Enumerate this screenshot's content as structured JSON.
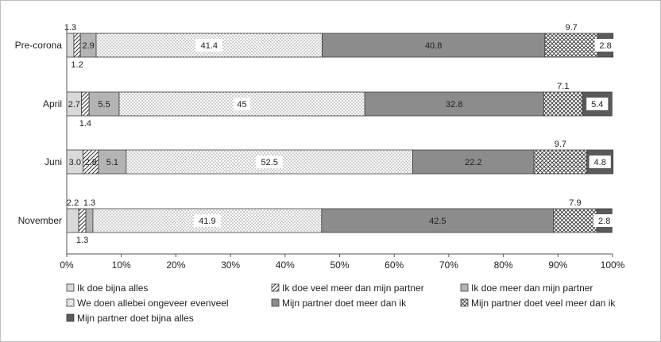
{
  "chart_data": {
    "type": "bar",
    "orientation": "horizontal",
    "stacked": "percent",
    "title": "",
    "xlabel": "",
    "ylabel": "",
    "xlim": [
      0,
      100
    ],
    "x_ticks": [
      "0%",
      "10%",
      "20%",
      "30%",
      "40%",
      "50%",
      "60%",
      "70%",
      "80%",
      "90%",
      "100%"
    ],
    "grid": false,
    "legend_position": "bottom",
    "categories": [
      "Pre-corona",
      "April",
      "Juni",
      "November"
    ],
    "series": [
      {
        "name": "Ik doe bijna alles",
        "values": [
          1.3,
          2.7,
          3.0,
          2.2
        ],
        "labels": [
          "1.3",
          "2.7",
          "3.0",
          "2.2"
        ],
        "pattern": "light-gray"
      },
      {
        "name": "Ik doe veel meer dan mijn partner",
        "values": [
          1.2,
          1.4,
          2.8,
          1.3
        ],
        "labels": [
          "1.2",
          "1.4",
          "2.8",
          "1.3"
        ],
        "pattern": "diagonal-hatch"
      },
      {
        "name": "Ik doe meer dan mijn partner",
        "values": [
          2.9,
          5.5,
          5.1,
          1.3
        ],
        "labels": [
          "2.9",
          "5.5",
          "5.1",
          "1.3"
        ],
        "pattern": "mid-gray"
      },
      {
        "name": "We doen allebei ongeveer evenveel",
        "values": [
          41.4,
          45,
          52.5,
          41.9
        ],
        "labels": [
          "41.4",
          "45",
          "52.5",
          "41.9"
        ],
        "pattern": "dotted"
      },
      {
        "name": "Mijn partner doet meer dan ik",
        "values": [
          40.8,
          32.8,
          22.2,
          42.5
        ],
        "labels": [
          "40.8",
          "32.8",
          "22.2",
          "42.5"
        ],
        "pattern": "gray"
      },
      {
        "name": "Mijn partner doet veel meer dan ik",
        "values": [
          9.7,
          7.1,
          9.7,
          7.9
        ],
        "labels": [
          "9.7",
          "7.1",
          "9.7",
          "7.9"
        ],
        "pattern": "cross-hatch"
      },
      {
        "name": "Mijn partner doet bijna alles",
        "values": [
          2.8,
          5.4,
          4.8,
          2.8
        ],
        "labels": [
          "2.8",
          "5.4",
          "4.8",
          "2.8"
        ],
        "pattern": "dark-gray"
      }
    ]
  }
}
